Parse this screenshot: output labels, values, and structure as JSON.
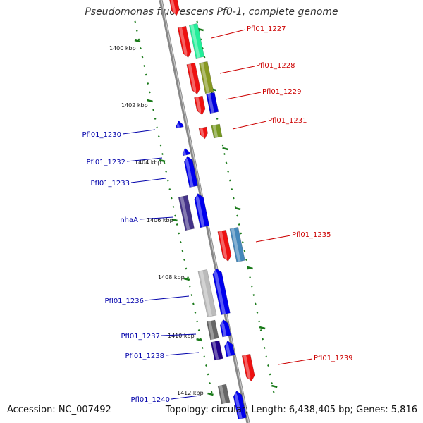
{
  "title": "Pseudomonas fluorescens Pf0-1, complete genome",
  "footer": {
    "accession": "Accession: NC_007492",
    "stats": "Topology: circular; Length: 6,438,405 bp; Genes: 5,816"
  },
  "colors": {
    "backbone": "#888888",
    "ticks": "#1a7a1a",
    "forward_label": "#cc0000",
    "reverse_label": "#0000aa"
  },
  "kbp_ticks": [
    "1400 kbp",
    "1402 kbp",
    "1404 kbp",
    "1406 kbp",
    "1408 kbp",
    "1410 kbp",
    "1412 kbp"
  ],
  "forward_labels": [
    "Pfl01_1227",
    "Pfl01_1228",
    "Pfl01_1229",
    "Pfl01_1231",
    "Pfl01_1235",
    "Pfl01_1239"
  ],
  "reverse_labels": [
    "Pfl01_1230",
    "Pfl01_1232",
    "Pfl01_1233",
    "nhaA",
    "Pfl01_1236",
    "Pfl01_1237",
    "Pfl01_1238",
    "Pfl01_1240"
  ]
}
